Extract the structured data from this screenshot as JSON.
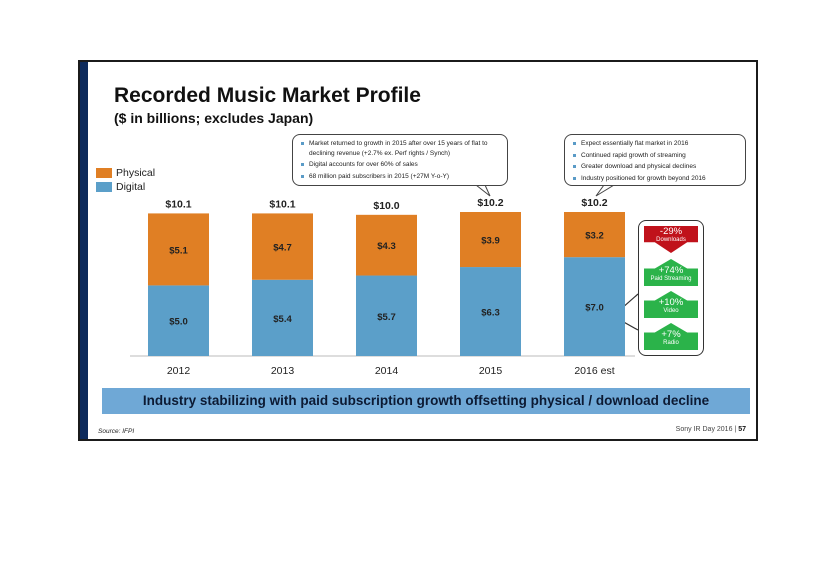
{
  "slide": {
    "title": "Recorded Music Market Profile",
    "subtitle": "($ in billions; excludes Japan)"
  },
  "legend": [
    {
      "label": "Physical",
      "color": "#e07f24"
    },
    {
      "label": "Digital",
      "color": "#5b9fc9"
    }
  ],
  "callouts": {
    "left": [
      "Market returned to growth in 2015 after over 15 years of flat to declining revenue (+2.7% ex. Perf rights / Synch)",
      "Digital accounts for over 60% of sales",
      "68 million paid subscribers in 2015 (+27M Y-o-Y)"
    ],
    "right": [
      "Expect essentially flat market in 2016",
      "Continued rapid growth of streaming",
      "Greater download and physical declines",
      "Industry positioned for growth beyond 2016"
    ]
  },
  "chart_data": {
    "type": "bar",
    "stacked": true,
    "categories": [
      "2012",
      "2013",
      "2014",
      "2015",
      "2016 est"
    ],
    "series": [
      {
        "name": "Digital",
        "values": [
          5.0,
          5.4,
          5.7,
          6.3,
          7.0
        ],
        "labels": [
          "$5.0",
          "$5.4",
          "$5.7",
          "$6.3",
          "$7.0"
        ],
        "color": "#5b9fc9"
      },
      {
        "name": "Physical",
        "values": [
          5.1,
          4.7,
          4.3,
          3.9,
          3.2
        ],
        "labels": [
          "$5.1",
          "$4.7",
          "$4.3",
          "$3.9",
          "$3.2"
        ],
        "color": "#e07f24"
      }
    ],
    "totals": [
      10.1,
      10.1,
      10.0,
      10.2,
      10.2
    ],
    "total_labels": [
      "$10.1",
      "$10.1",
      "$10.0",
      "$10.2",
      "$10.2"
    ],
    "ylim": [
      0,
      10.2
    ],
    "grid": false
  },
  "growth": [
    {
      "pct": "-29%",
      "label": "Downloads",
      "direction": "down",
      "color": "#c0121b"
    },
    {
      "pct": "+74%",
      "label": "Paid Streaming",
      "direction": "up",
      "color": "#2bb34a"
    },
    {
      "pct": "+10%",
      "label": "Video",
      "direction": "up",
      "color": "#2bb34a"
    },
    {
      "pct": "+7%",
      "label": "Radio",
      "direction": "up",
      "color": "#2bb34a"
    }
  ],
  "banner": "Industry stabilizing with paid subscription growth offsetting physical / download decline",
  "source": "Source: IFPI",
  "footer": {
    "text": "Sony IR Day 2016",
    "separator": "|",
    "page": "57"
  }
}
